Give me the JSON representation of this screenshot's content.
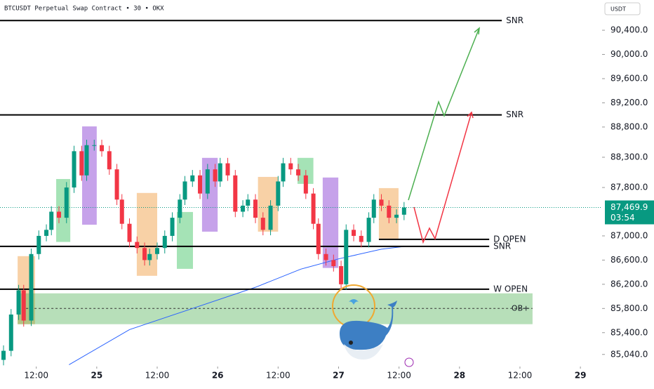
{
  "header": {
    "symbol": "BTCUSDT Perpetual Swap Contract • 30 • OKX",
    "currency": "USDT"
  },
  "chart_data": {
    "type": "candlestick",
    "up_color": "#089981",
    "down_color": "#f23645",
    "xlim": [
      -1.4,
      237.6
    ],
    "ylim": [
      84840,
      90900
    ],
    "xticks": [
      {
        "value": 13,
        "label": "12:00"
      },
      {
        "value": 37,
        "label": "25"
      },
      {
        "value": 61,
        "label": "12:00"
      },
      {
        "value": 85,
        "label": "26"
      },
      {
        "value": 109,
        "label": "12:00"
      },
      {
        "value": 133,
        "label": "27"
      },
      {
        "value": 157,
        "label": "12:00"
      },
      {
        "value": 181,
        "label": "28"
      },
      {
        "value": 205,
        "label": "12:00"
      },
      {
        "value": 229,
        "label": "29"
      }
    ],
    "yticks": [
      {
        "value": 90400,
        "label": "90,400.0"
      },
      {
        "value": 90000,
        "label": "90,000.0"
      },
      {
        "value": 89600,
        "label": "89,600.0"
      },
      {
        "value": 89200,
        "label": "89,200.0"
      },
      {
        "value": 88800,
        "label": "88,800.0"
      },
      {
        "value": 88300,
        "label": "88,300.0"
      },
      {
        "value": 87800,
        "label": "87,800.0"
      },
      {
        "value": 87000,
        "label": "87,000.0"
      },
      {
        "value": 86600,
        "label": "86,600.0"
      },
      {
        "value": 86200,
        "label": "86,200.0"
      },
      {
        "value": 85800,
        "label": "85,800.0"
      },
      {
        "value": 85400,
        "label": "85,400.0"
      },
      {
        "value": 85040,
        "label": "85,040.0"
      }
    ],
    "x": [
      0,
      3,
      6,
      8,
      11,
      14,
      17,
      19,
      22,
      25,
      28,
      31,
      33,
      36,
      39,
      42,
      45,
      47,
      50,
      53,
      56,
      58,
      61,
      64,
      67,
      70,
      72,
      75,
      78,
      81,
      84,
      86,
      89,
      92,
      95,
      97,
      100,
      103,
      106,
      109,
      111,
      114,
      117,
      120,
      123,
      125,
      128,
      131,
      134,
      136,
      139,
      142,
      145,
      147,
      150,
      153,
      156,
      159
    ],
    "open": [
      84950,
      85100,
      85700,
      86100,
      85600,
      86700,
      87000,
      87100,
      87400,
      87300,
      87800,
      88400,
      88000,
      88500,
      88500,
      88400,
      88100,
      87600,
      87200,
      86900,
      86800,
      86600,
      86700,
      86800,
      87000,
      87300,
      87600,
      87900,
      88000,
      87700,
      88100,
      87900,
      88200,
      88000,
      87400,
      87500,
      87600,
      87300,
      87100,
      87500,
      87900,
      88200,
      88100,
      88000,
      87700,
      87200,
      86700,
      86600,
      86500,
      86200,
      87100,
      87000,
      86900,
      87300,
      87600,
      87500,
      87300,
      87350
    ],
    "high": [
      85190,
      85790,
      86190,
      86190,
      86790,
      87090,
      87190,
      87490,
      87490,
      87890,
      88490,
      88490,
      88590,
      88590,
      88590,
      88490,
      88190,
      87690,
      87290,
      86990,
      86890,
      86790,
      86890,
      87090,
      87390,
      87690,
      87990,
      88090,
      88090,
      88190,
      88190,
      88290,
      88290,
      88090,
      87590,
      87690,
      87690,
      87390,
      87590,
      87990,
      88290,
      88290,
      88190,
      88090,
      87790,
      87290,
      86790,
      86690,
      86590,
      87190,
      87190,
      87090,
      87390,
      87690,
      87690,
      87590,
      87440,
      87560
    ],
    "low": [
      84860,
      85010,
      85610,
      85500,
      85510,
      86610,
      86910,
      87010,
      87210,
      87210,
      87710,
      87910,
      87910,
      88410,
      88310,
      88010,
      87510,
      87110,
      86810,
      86710,
      86510,
      86510,
      86610,
      86710,
      86910,
      87210,
      87510,
      87810,
      87610,
      87610,
      87810,
      87810,
      87910,
      87310,
      87310,
      87410,
      87210,
      87010,
      87010,
      87410,
      87810,
      88010,
      87910,
      87610,
      87110,
      86610,
      86510,
      86410,
      86100,
      86110,
      86910,
      86810,
      86810,
      87210,
      87410,
      87210,
      87210,
      87260
    ],
    "close": [
      85100,
      85700,
      86100,
      85600,
      86700,
      87000,
      87100,
      87400,
      87300,
      87800,
      88400,
      88000,
      88500,
      88500,
      88400,
      88100,
      87600,
      87200,
      86900,
      86800,
      86600,
      86700,
      86800,
      87000,
      87300,
      87600,
      87900,
      88000,
      87700,
      88100,
      87900,
      88200,
      88000,
      87400,
      87500,
      87600,
      87300,
      87100,
      87500,
      87900,
      88200,
      88100,
      88000,
      87700,
      87200,
      86700,
      86600,
      86500,
      86200,
      87100,
      87000,
      86900,
      87300,
      87600,
      87500,
      87300,
      87350,
      87470
    ],
    "moving_average": {
      "color": "#2962ff",
      "x": [
        26,
        50,
        75,
        100,
        118,
        133,
        150,
        160
      ],
      "values": [
        84870,
        85450,
        85800,
        86150,
        86450,
        86620,
        86780,
        86830
      ]
    },
    "zones": [
      {
        "color": "rgba(242,171,92,0.55)",
        "x": [
          5.6,
          12.5
        ],
        "range": [
          85540,
          86665
        ]
      },
      {
        "color": "rgba(76,200,110,0.5)",
        "x": [
          20.9,
          26.5
        ],
        "range": [
          86900,
          87940
        ]
      },
      {
        "color": "rgba(160,100,220,0.6)",
        "x": [
          31.2,
          37
        ],
        "range": [
          87185,
          88810
        ]
      },
      {
        "color": "rgba(242,171,92,0.55)",
        "x": [
          52.9,
          61
        ],
        "range": [
          86340,
          87710
        ]
      },
      {
        "color": "rgba(76,200,110,0.5)",
        "x": [
          68.8,
          75.2
        ],
        "range": [
          86455,
          87395
        ]
      },
      {
        "color": "rgba(160,100,220,0.6)",
        "x": [
          78.8,
          85
        ],
        "range": [
          87070,
          88290
        ]
      },
      {
        "color": "rgba(242,171,92,0.55)",
        "x": [
          101,
          109
        ],
        "range": [
          87070,
          87975
        ]
      },
      {
        "color": "rgba(76,200,110,0.5)",
        "x": [
          116.7,
          123
        ],
        "range": [
          87860,
          88290
        ]
      },
      {
        "color": "rgba(160,100,220,0.6)",
        "x": [
          126.7,
          132.9
        ],
        "range": [
          86470,
          87965
        ]
      },
      {
        "color": "rgba(242,171,92,0.55)",
        "x": [
          149,
          156.8
        ],
        "range": [
          86955,
          87790
        ]
      }
    ],
    "order_block": {
      "label": "OB+",
      "color": "rgba(76,175,80,0.4)",
      "x": [
        5.6,
        210
      ],
      "range": [
        85540,
        86050
      ],
      "mid": 85800
    },
    "levels": [
      {
        "label": "SNR",
        "price": 90560,
        "x": [
          -1.4,
          197.8
        ]
      },
      {
        "label": "SNR",
        "price": 89000,
        "x": [
          -1.4,
          197.8
        ]
      },
      {
        "label": "D OPEN",
        "price": 86943,
        "x": [
          149,
          192.8
        ]
      },
      {
        "label": "SNR",
        "price": 86827,
        "x": [
          -1.4,
          192.8
        ]
      },
      {
        "label": "W OPEN",
        "price": 86119,
        "x": [
          -1.4,
          192.8
        ]
      }
    ],
    "last_price": {
      "value": 87469.9,
      "label": "87,469.9",
      "countdown": "03:54"
    }
  }
}
